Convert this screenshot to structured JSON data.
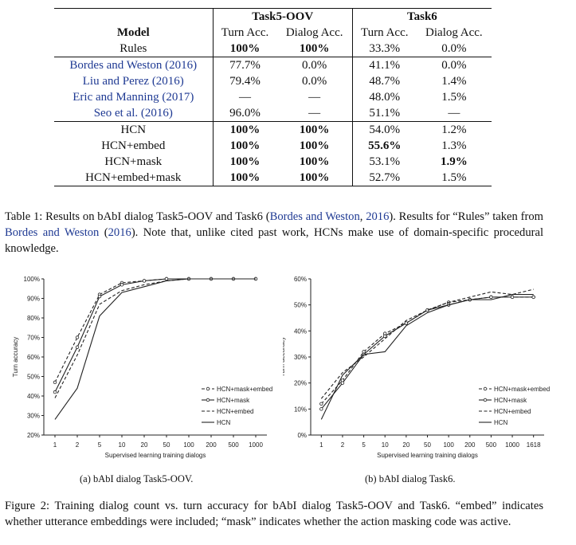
{
  "table": {
    "group_headers": [
      "Task5-OOV",
      "Task6"
    ],
    "model_header": "Model",
    "col_headers": [
      "Turn Acc.",
      "Dialog Acc.",
      "Turn Acc.",
      "Dialog Acc."
    ],
    "rows": [
      {
        "model": "Rules",
        "cite": false,
        "cells": [
          "100%",
          "100%",
          "33.3%",
          "0.0%"
        ],
        "bold": [
          true,
          true,
          false,
          false
        ]
      },
      {
        "model": "Bordes and Weston (2016)",
        "cite": true,
        "cells": [
          "77.7%",
          "0.0%",
          "41.1%",
          "0.0%"
        ],
        "bold": [
          false,
          false,
          false,
          false
        ]
      },
      {
        "model": "Liu and Perez (2016)",
        "cite": true,
        "cells": [
          "79.4%",
          "0.0%",
          "48.7%",
          "1.4%"
        ],
        "bold": [
          false,
          false,
          false,
          false
        ]
      },
      {
        "model": "Eric and Manning (2017)",
        "cite": true,
        "cells": [
          "—",
          "—",
          "48.0%",
          "1.5%"
        ],
        "bold": [
          false,
          false,
          false,
          false
        ]
      },
      {
        "model": "Seo et al. (2016)",
        "cite": true,
        "cells": [
          "96.0%",
          "—",
          "51.1%",
          "—"
        ],
        "bold": [
          false,
          false,
          false,
          false
        ]
      },
      {
        "model": "HCN",
        "cite": false,
        "cells": [
          "100%",
          "100%",
          "54.0%",
          "1.2%"
        ],
        "bold": [
          true,
          true,
          false,
          false
        ]
      },
      {
        "model": "HCN+embed",
        "cite": false,
        "cells": [
          "100%",
          "100%",
          "55.6%",
          "1.3%"
        ],
        "bold": [
          true,
          true,
          true,
          false
        ]
      },
      {
        "model": "HCN+mask",
        "cite": false,
        "cells": [
          "100%",
          "100%",
          "53.1%",
          "1.9%"
        ],
        "bold": [
          true,
          true,
          false,
          true
        ]
      },
      {
        "model": "HCN+embed+mask",
        "cite": false,
        "cells": [
          "100%",
          "100%",
          "52.7%",
          "1.5%"
        ],
        "bold": [
          true,
          true,
          false,
          false
        ]
      }
    ]
  },
  "table_caption": {
    "label": "Table 1:",
    "text1": "Results on bAbI dialog Task5-OOV and Task6 (",
    "cite1": "Bordes and Weston",
    "text2": ", ",
    "year1": "2016",
    "text3": "). Results for “Rules” taken from ",
    "cite2": "Bordes and Weston",
    "text4": " (",
    "year2": "2016",
    "text5": "). Note that, unlike cited past work, HCNs make use of domain-specific procedural knowledge."
  },
  "figure_caption": {
    "label": "Figure 2:",
    "text": "Training dialog count vs. turn accuracy for bAbI dialog Task5-OOV and Task6. “embed” indicates whether utterance embeddings were included; “mask” indicates whether the action masking code was active."
  },
  "chart_data": [
    {
      "type": "line",
      "subcaption": "(a) bAbI dialog Task5-OOV.",
      "xlabel": "Supervised learning training dialogs",
      "ylabel": "Turn accuracy",
      "categories": [
        "1",
        "2",
        "5",
        "10",
        "20",
        "50",
        "100",
        "200",
        "500",
        "1000"
      ],
      "yticks": [
        "20%",
        "30%",
        "40%",
        "50%",
        "60%",
        "70%",
        "80%",
        "90%",
        "100%"
      ],
      "ylim": [
        20,
        100
      ],
      "legend_position": "bottom-right",
      "series": [
        {
          "name": "HCN+mask+embed",
          "style": "dashed-circle",
          "values": [
            47,
            70,
            92,
            98,
            99,
            100,
            100,
            100,
            100,
            100
          ]
        },
        {
          "name": "HCN+mask",
          "style": "solid-circle",
          "values": [
            42,
            65,
            91,
            97,
            99,
            100,
            100,
            100,
            100,
            100
          ]
        },
        {
          "name": "HCN+embed",
          "style": "dashed",
          "values": [
            39,
            61,
            87,
            94,
            97,
            99,
            100,
            100,
            100,
            100
          ]
        },
        {
          "name": "HCN",
          "style": "solid",
          "values": [
            28,
            44,
            81,
            93,
            96,
            99,
            100,
            100,
            100,
            100
          ]
        }
      ]
    },
    {
      "type": "line",
      "subcaption": "(b) bAbI dialog Task6.",
      "xlabel": "Supervised learning training dialogs",
      "ylabel": "Turn accuracy",
      "categories": [
        "1",
        "2",
        "5",
        "10",
        "20",
        "50",
        "100",
        "200",
        "500",
        "1000",
        "1618"
      ],
      "yticks": [
        "0%",
        "10%",
        "20%",
        "30%",
        "40%",
        "50%",
        "60%"
      ],
      "ylim": [
        0,
        60
      ],
      "legend_position": "bottom-right",
      "series": [
        {
          "name": "HCN+mask+embed",
          "style": "dashed-circle",
          "values": [
            12,
            21,
            32,
            39,
            43,
            48,
            51,
            52,
            53,
            53,
            53
          ]
        },
        {
          "name": "HCN+mask",
          "style": "solid-circle",
          "values": [
            10,
            20,
            31,
            38,
            43,
            48,
            50,
            52,
            53,
            53,
            53
          ]
        },
        {
          "name": "HCN+embed",
          "style": "dashed",
          "values": [
            14,
            24,
            30,
            37,
            44,
            48,
            51,
            53,
            55,
            54,
            56
          ]
        },
        {
          "name": "HCN",
          "style": "solid",
          "values": [
            6,
            23,
            31,
            32,
            42,
            47,
            50,
            52,
            52,
            54,
            54
          ]
        }
      ]
    }
  ]
}
